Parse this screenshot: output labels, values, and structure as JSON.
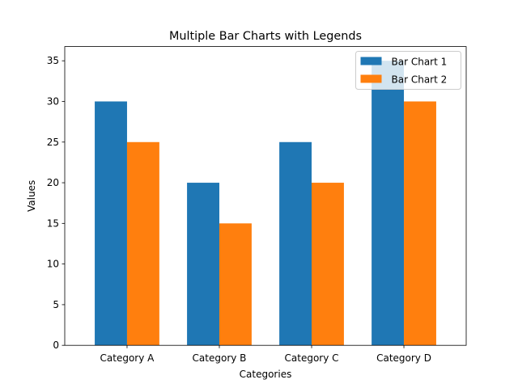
{
  "chart_data": {
    "type": "bar",
    "title": "Multiple Bar Charts with Legends",
    "xlabel": "Categories",
    "ylabel": "Values",
    "categories": [
      "Category A",
      "Category B",
      "Category C",
      "Category D"
    ],
    "series": [
      {
        "name": "Bar Chart 1",
        "values": [
          30,
          20,
          25,
          35
        ],
        "color": "#1f77b4"
      },
      {
        "name": "Bar Chart 2",
        "values": [
          25,
          15,
          20,
          30
        ],
        "color": "#ff7f0e"
      }
    ],
    "ylim": [
      0,
      36.75
    ],
    "yticks": [
      "0",
      "5",
      "10",
      "15",
      "20",
      "25",
      "30",
      "35"
    ],
    "grid": false,
    "legend_position": "top-right"
  }
}
